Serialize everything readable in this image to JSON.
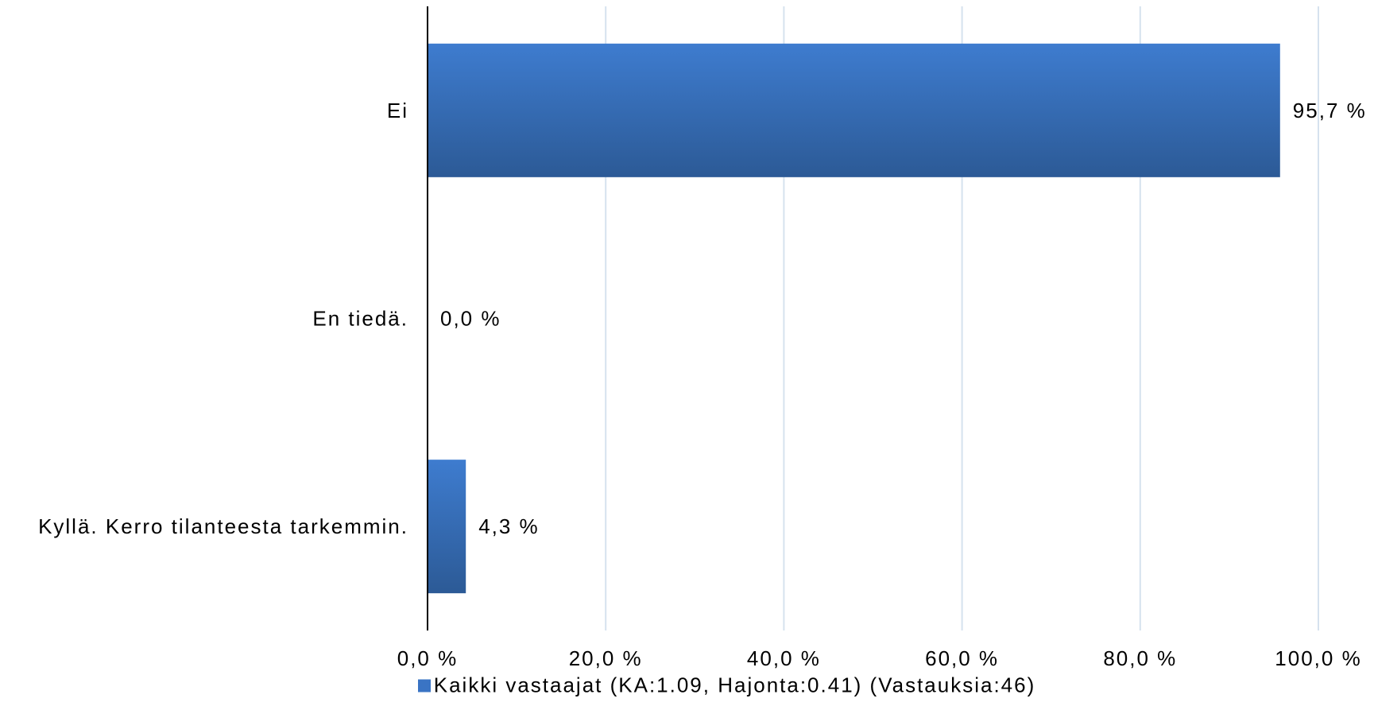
{
  "chart_data": {
    "type": "bar",
    "orientation": "horizontal",
    "categories": [
      "Ei",
      "En tiedä.",
      "Kyllä. Kerro tilanteesta tarkemmin."
    ],
    "series": [
      {
        "name": "Kaikki vastaajat (KA:1.09, Hajonta:0.41) (Vastauksia:46)",
        "values": [
          95.7,
          0.0,
          4.3
        ],
        "value_labels": [
          "95,7 %",
          "0,0 %",
          "4,3 %"
        ]
      }
    ],
    "xlim": [
      0,
      100
    ],
    "x_ticks": [
      0,
      20,
      40,
      60,
      80,
      100
    ],
    "x_tick_labels": [
      "0,0 %",
      "20,0 %",
      "40,0 %",
      "60,0 %",
      "80,0 %",
      "100,0 %"
    ],
    "grid": true,
    "legend_position": "bottom",
    "colors": {
      "bar": "#3a74c4",
      "bar_dark": "#2f5b96",
      "grid": "#d6e2ee",
      "axis": "#000000"
    }
  }
}
